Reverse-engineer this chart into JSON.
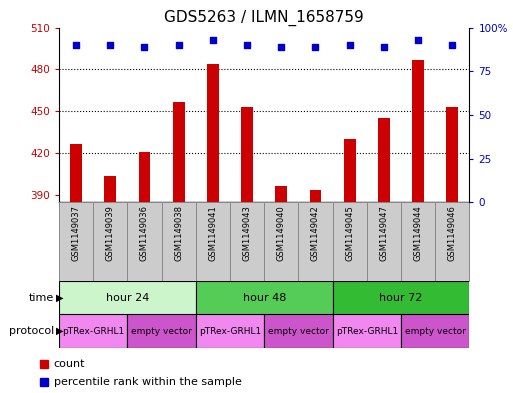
{
  "title": "GDS5263 / ILMN_1658759",
  "samples": [
    "GSM1149037",
    "GSM1149039",
    "GSM1149036",
    "GSM1149038",
    "GSM1149041",
    "GSM1149043",
    "GSM1149040",
    "GSM1149042",
    "GSM1149045",
    "GSM1149047",
    "GSM1149044",
    "GSM1149046"
  ],
  "counts": [
    427,
    404,
    421,
    457,
    484,
    453,
    397,
    394,
    430,
    445,
    487,
    453
  ],
  "percentiles": [
    90,
    90,
    89,
    90,
    93,
    90,
    89,
    89,
    90,
    89,
    93,
    90
  ],
  "ylim_left": [
    385,
    510
  ],
  "ylim_right": [
    0,
    100
  ],
  "yticks_left": [
    390,
    420,
    450,
    480,
    510
  ],
  "yticks_right": [
    0,
    25,
    50,
    75,
    100
  ],
  "time_groups": [
    {
      "label": "hour 24",
      "start": 0,
      "end": 4,
      "color": "#ccf5cc"
    },
    {
      "label": "hour 48",
      "start": 4,
      "end": 8,
      "color": "#55cc55"
    },
    {
      "label": "hour 72",
      "start": 8,
      "end": 12,
      "color": "#33bb33"
    }
  ],
  "protocol_groups": [
    {
      "label": "pTRex-GRHL1",
      "start": 0,
      "end": 2,
      "color": "#f088f0"
    },
    {
      "label": "empty vector",
      "start": 2,
      "end": 4,
      "color": "#cc55cc"
    },
    {
      "label": "pTRex-GRHL1",
      "start": 4,
      "end": 6,
      "color": "#f088f0"
    },
    {
      "label": "empty vector",
      "start": 6,
      "end": 8,
      "color": "#cc55cc"
    },
    {
      "label": "pTRex-GRHL1",
      "start": 8,
      "end": 10,
      "color": "#f088f0"
    },
    {
      "label": "empty vector",
      "start": 10,
      "end": 12,
      "color": "#cc55cc"
    }
  ],
  "bar_color": "#cc0000",
  "dot_color": "#0000cc",
  "bar_width": 0.35,
  "title_fontsize": 11,
  "axis_label_color_left": "#cc0000",
  "axis_label_color_right": "#0000cc",
  "sample_box_color": "#cccccc",
  "sample_box_edge": "#888888"
}
